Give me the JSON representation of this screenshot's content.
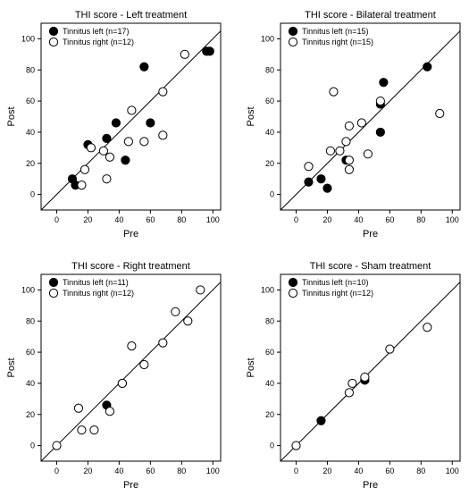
{
  "chart_data": [
    {
      "type": "scatter",
      "title": "THI score - Left treatment",
      "xlabel": "Pre",
      "ylabel": "Post",
      "xlim": [
        -10,
        105
      ],
      "ylim": [
        -10,
        110
      ],
      "ticks": [
        0,
        20,
        40,
        60,
        80,
        100
      ],
      "identity_line": true,
      "legend_position": "top-left",
      "series": [
        {
          "name": "Tinnitus left (n=17)",
          "marker": "filled",
          "color": "#000000",
          "points": [
            [
              10,
              10
            ],
            [
              12,
              6
            ],
            [
              20,
              32
            ],
            [
              32,
              36
            ],
            [
              38,
              46
            ],
            [
              44,
              22
            ],
            [
              56,
              82
            ],
            [
              60,
              46
            ],
            [
              96,
              92
            ],
            [
              98,
              92
            ]
          ]
        },
        {
          "name": "Tinnitus right (n=12)",
          "marker": "open",
          "color": "#000000",
          "points": [
            [
              16,
              6
            ],
            [
              18,
              16
            ],
            [
              22,
              30
            ],
            [
              30,
              28
            ],
            [
              32,
              10
            ],
            [
              34,
              24
            ],
            [
              46,
              34
            ],
            [
              48,
              54
            ],
            [
              56,
              34
            ],
            [
              68,
              66
            ],
            [
              68,
              38
            ],
            [
              82,
              90
            ]
          ]
        }
      ]
    },
    {
      "type": "scatter",
      "title": "THI score - Bilateral treatment",
      "xlabel": "Pre",
      "ylabel": "Post",
      "xlim": [
        -10,
        105
      ],
      "ylim": [
        -10,
        110
      ],
      "ticks": [
        0,
        20,
        40,
        60,
        80,
        100
      ],
      "identity_line": true,
      "legend_position": "top-left",
      "series": [
        {
          "name": "Tinnitus left (n=15)",
          "marker": "filled",
          "color": "#000000",
          "points": [
            [
              8,
              8
            ],
            [
              16,
              10
            ],
            [
              20,
              4
            ],
            [
              32,
              22
            ],
            [
              54,
              40
            ],
            [
              54,
              58
            ],
            [
              56,
              72
            ],
            [
              84,
              82
            ]
          ]
        },
        {
          "name": "Tinnitus right (n=15)",
          "marker": "open",
          "color": "#000000",
          "points": [
            [
              8,
              18
            ],
            [
              22,
              28
            ],
            [
              24,
              66
            ],
            [
              28,
              28
            ],
            [
              32,
              34
            ],
            [
              34,
              16
            ],
            [
              34,
              22
            ],
            [
              34,
              44
            ],
            [
              42,
              46
            ],
            [
              46,
              26
            ],
            [
              54,
              60
            ],
            [
              92,
              52
            ]
          ]
        }
      ]
    },
    {
      "type": "scatter",
      "title": "THI score - Right treatment",
      "xlabel": "Pre",
      "ylabel": "Post",
      "xlim": [
        -10,
        105
      ],
      "ylim": [
        -10,
        110
      ],
      "ticks": [
        0,
        20,
        40,
        60,
        80,
        100
      ],
      "identity_line": true,
      "legend_position": "top-left",
      "series": [
        {
          "name": "Tinnitus left (n=11)",
          "marker": "filled",
          "color": "#000000",
          "points": [
            [
              32,
              26
            ],
            [
              42,
              40
            ]
          ]
        },
        {
          "name": "Tinnitus right (n=12)",
          "marker": "open",
          "color": "#000000",
          "points": [
            [
              0,
              0
            ],
            [
              14,
              24
            ],
            [
              16,
              10
            ],
            [
              24,
              10
            ],
            [
              34,
              22
            ],
            [
              42,
              40
            ],
            [
              48,
              64
            ],
            [
              56,
              52
            ],
            [
              68,
              66
            ],
            [
              76,
              86
            ],
            [
              84,
              80
            ],
            [
              92,
              100
            ]
          ]
        }
      ]
    },
    {
      "type": "scatter",
      "title": "THI score - Sham treatment",
      "xlabel": "Pre",
      "ylabel": "Post",
      "xlim": [
        -10,
        105
      ],
      "ylim": [
        -10,
        110
      ],
      "ticks": [
        0,
        20,
        40,
        60,
        80,
        100
      ],
      "identity_line": true,
      "legend_position": "top-left",
      "series": [
        {
          "name": "Tinnitus left (n=10)",
          "marker": "filled",
          "color": "#000000",
          "points": [
            [
              16,
              16
            ],
            [
              44,
              42
            ]
          ]
        },
        {
          "name": "Tinnitus right (n=12)",
          "marker": "open",
          "color": "#000000",
          "points": [
            [
              0,
              0
            ],
            [
              34,
              34
            ],
            [
              36,
              40
            ],
            [
              44,
              44
            ],
            [
              60,
              62
            ],
            [
              84,
              76
            ]
          ]
        }
      ]
    }
  ]
}
